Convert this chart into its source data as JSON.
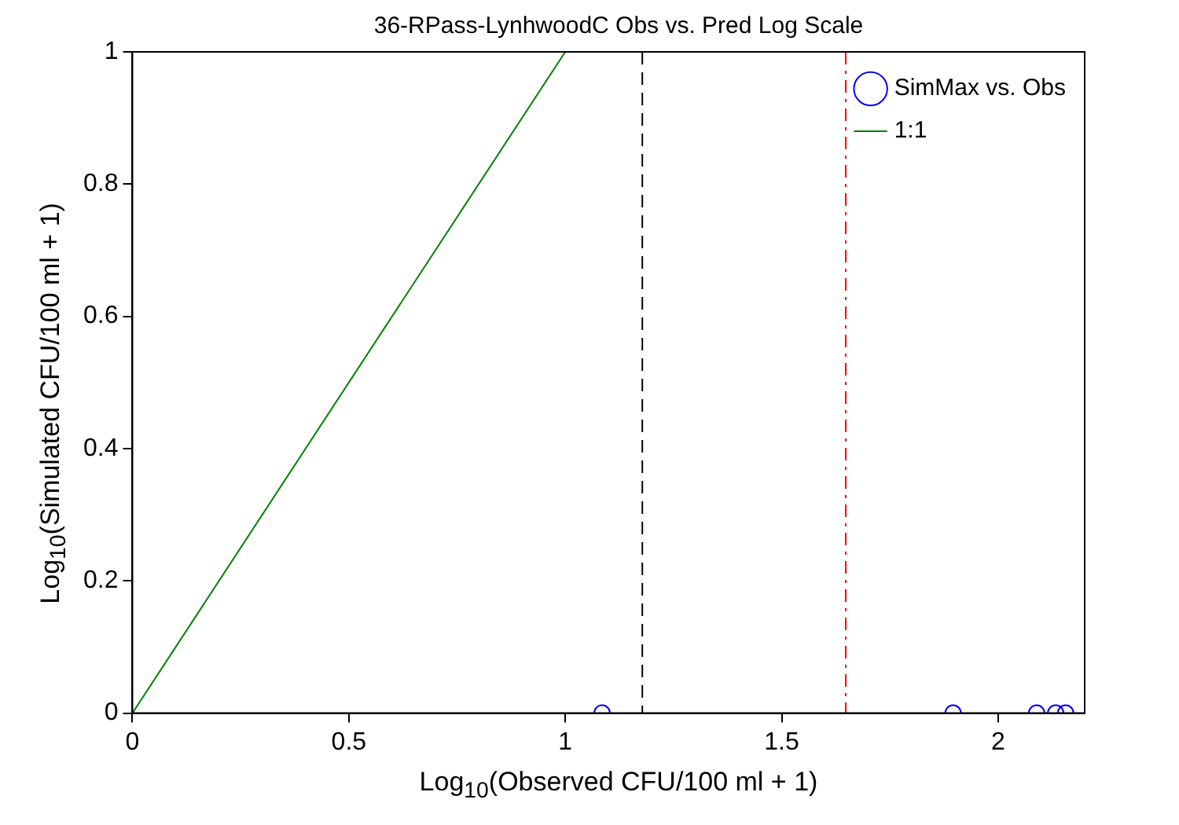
{
  "chart_data": {
    "type": "scatter",
    "title": "36-RPass-LynhwoodC Obs vs. Pred Log Scale",
    "xlabel": "Log$_{10}$(Observed CFU/100 ml + 1)",
    "ylabel": "Log$_{10}$(Simulated CFU/100 ml + 1)",
    "xlim": [
      0,
      2.2
    ],
    "xticks": [
      0,
      0.5,
      1,
      1.5,
      2
    ],
    "ylim": [
      0,
      1
    ],
    "yticks": [
      0,
      0.2,
      0.4,
      0.6,
      0.8,
      1
    ],
    "grid": false,
    "legend": "top right",
    "series": [
      {
        "name": "SimMax vs. Obs",
        "type": "scatter",
        "marker": "circle",
        "color": "#0000ff",
        "x": [
          1.085,
          1.896,
          2.089,
          2.133,
          2.156
        ],
        "values": [
          0,
          0,
          0,
          0,
          0
        ]
      },
      {
        "name": "1:1",
        "type": "line",
        "marker": "none",
        "line_style": "solid",
        "color": "#008000",
        "x": [
          0,
          1
        ],
        "values": [
          0,
          1
        ]
      }
    ],
    "ref_lines": [
      {
        "axis": "x",
        "value": 1.178,
        "color": "#000000",
        "line_style": "dashed"
      },
      {
        "axis": "x",
        "value": 1.648,
        "color": "#ff0000",
        "line_style": "dashdot"
      }
    ]
  }
}
